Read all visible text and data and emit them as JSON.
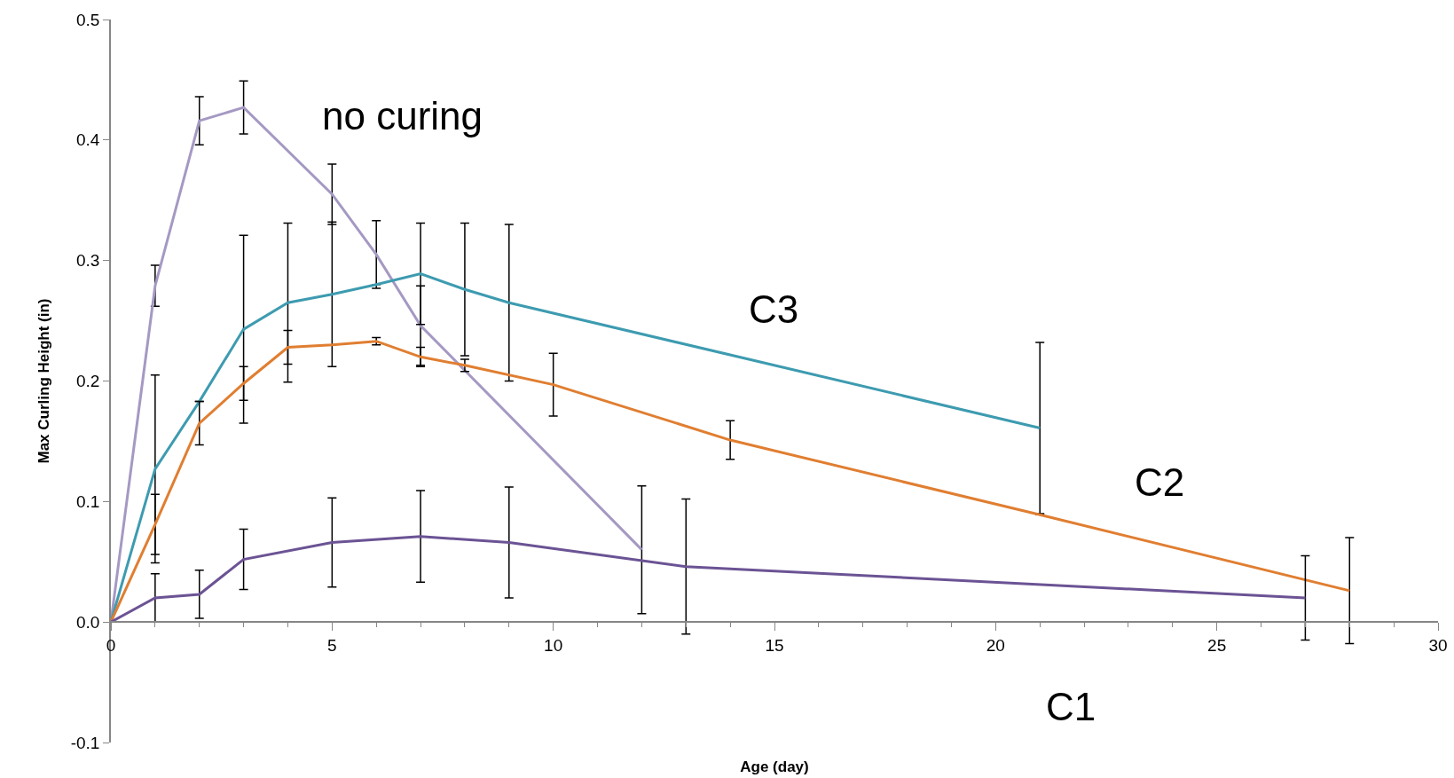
{
  "chart_data": {
    "type": "line",
    "xlabel": "Age (day)",
    "ylabel": "Max Curling Height (in)",
    "xlim": [
      0,
      30
    ],
    "xticks": [
      0,
      5,
      10,
      15,
      20,
      25,
      30
    ],
    "ylim": [
      -0.1,
      0.5
    ],
    "yticks": [
      -0.1,
      {
        "value": 0,
        "label": "0.0"
      },
      0.1,
      0.2,
      0.3,
      0.4,
      0.5
    ],
    "grid": false,
    "marker": "none",
    "line_style": "solid",
    "series": [
      {
        "name": "no curing",
        "color": "#a599c3",
        "x": [
          0,
          1,
          2,
          3,
          5,
          6,
          7,
          12
        ],
        "values": [
          0,
          0.279,
          0.416,
          0.427,
          0.355,
          0.305,
          0.246,
          0.06
        ],
        "errors": [
          null,
          0.017,
          0.02,
          0.022,
          0.025,
          0.028,
          0.033,
          0.053
        ]
      },
      {
        "name": "C3",
        "color": "#3d9bb0",
        "x": [
          0,
          1,
          2,
          3,
          4,
          5,
          6,
          7,
          8,
          9,
          21
        ],
        "values": [
          0,
          0.127,
          0.183,
          0.243,
          0.265,
          0.272,
          0.28,
          0.289,
          0.276,
          0.265,
          0.161
        ],
        "errors": [
          null,
          0.078,
          null,
          0.078,
          0.066,
          0.06,
          null,
          0.042,
          0.055,
          0.065,
          0.071
        ]
      },
      {
        "name": "C2",
        "color": "#e07e31",
        "x": [
          0,
          1,
          2,
          3,
          4,
          5,
          6,
          7,
          8,
          10,
          14,
          21,
          28
        ],
        "values": [
          0,
          0.081,
          0.165,
          0.198,
          0.228,
          0.23,
          0.233,
          0.22,
          0.213,
          0.197,
          0.151,
          0.089,
          0.026
        ],
        "errors": [
          null,
          0.025,
          0.018,
          0.014,
          0.014,
          null,
          0.003,
          0.008,
          0.005,
          0.026,
          0.016,
          null,
          0.044
        ]
      },
      {
        "name": "C1",
        "color": "#6b5394",
        "x": [
          0,
          1,
          2,
          3,
          5,
          7,
          9,
          13,
          27
        ],
        "values": [
          0,
          0.02,
          0.023,
          0.052,
          0.066,
          0.071,
          0.066,
          0.046,
          0.02
        ],
        "errors": [
          null,
          0.02,
          0.02,
          0.025,
          0.037,
          0.038,
          0.046,
          0.056,
          0.035
        ]
      }
    ]
  }
}
